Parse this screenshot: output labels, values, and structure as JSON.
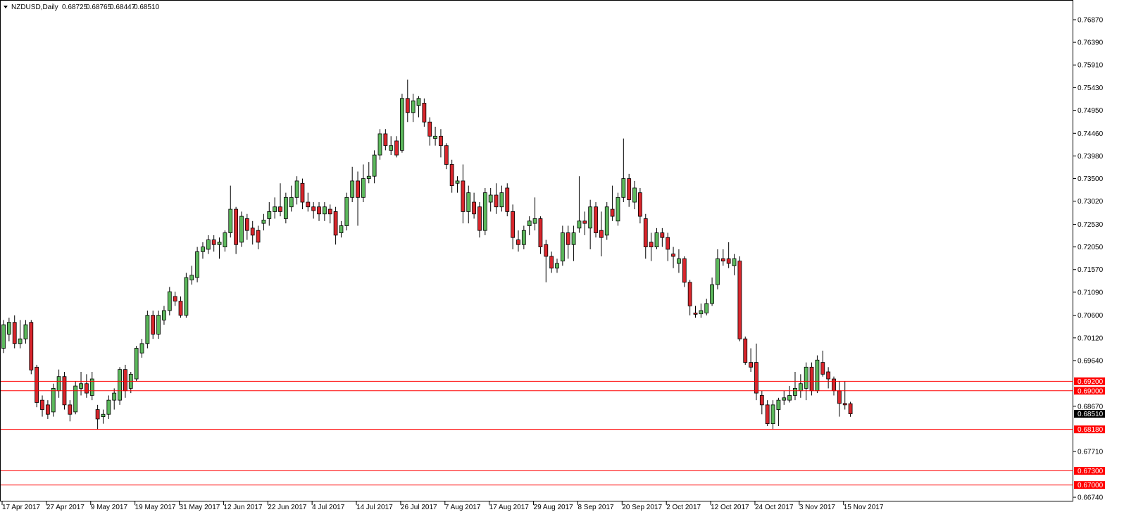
{
  "chart_data": {
    "type": "candlestick",
    "header": {
      "symbol": "NZDUSD,Daily",
      "quote": [
        "0.68725",
        "0.68765",
        "0.68447",
        "0.68510"
      ]
    },
    "up_color": "#5cb85c",
    "down_color": "#d9262c",
    "line_color": "#ff0000",
    "ylim": [
      0.66651,
      0.77288
    ],
    "yticks": [
      {
        "value": 0.7687,
        "label": "0.76870"
      },
      {
        "value": 0.7639,
        "label": "0.76390"
      },
      {
        "value": 0.7591,
        "label": "0.75910"
      },
      {
        "value": 0.7543,
        "label": "0.75430"
      },
      {
        "value": 0.7495,
        "label": "0.74950"
      },
      {
        "value": 0.7446,
        "label": "0.74460"
      },
      {
        "value": 0.7398,
        "label": "0.73980"
      },
      {
        "value": 0.735,
        "label": "0.73500"
      },
      {
        "value": 0.7302,
        "label": "0.73020"
      },
      {
        "value": 0.7253,
        "label": "0.72530"
      },
      {
        "value": 0.7205,
        "label": "0.72050"
      },
      {
        "value": 0.7157,
        "label": "0.71570"
      },
      {
        "value": 0.7109,
        "label": "0.71090"
      },
      {
        "value": 0.706,
        "label": "0.70600"
      },
      {
        "value": 0.7012,
        "label": "0.70120"
      },
      {
        "value": 0.6964,
        "label": "0.69640"
      },
      {
        "value": 0.6867,
        "label": "0.68670"
      },
      {
        "value": 0.6771,
        "label": "0.67710"
      },
      {
        "value": 0.6674,
        "label": "0.66740"
      }
    ],
    "hlines": [
      {
        "value": 0.692,
        "label": "0.69200"
      },
      {
        "value": 0.69,
        "label": "0.69000"
      },
      {
        "value": 0.6818,
        "label": "0.68180"
      },
      {
        "value": 0.673,
        "label": "0.67300"
      },
      {
        "value": 0.67,
        "label": "0.67000"
      }
    ],
    "current": {
      "value": 0.6851,
      "label": "0.68510"
    },
    "categories": [
      "17 Apr 2017",
      null,
      null,
      null,
      null,
      null,
      null,
      null,
      "27 Apr 2017",
      null,
      null,
      null,
      null,
      null,
      null,
      null,
      "9 May 2017",
      null,
      null,
      null,
      null,
      null,
      null,
      null,
      "19 May 2017",
      null,
      null,
      null,
      null,
      null,
      null,
      null,
      "31 May 2017",
      null,
      null,
      null,
      null,
      null,
      null,
      null,
      "12 Jun 2017",
      null,
      null,
      null,
      null,
      null,
      null,
      null,
      "22 Jun 2017",
      null,
      null,
      null,
      null,
      null,
      null,
      null,
      "4 Jul 2017",
      null,
      null,
      null,
      null,
      null,
      null,
      null,
      "14 Jul 2017",
      null,
      null,
      null,
      null,
      null,
      null,
      null,
      "26 Jul 2017",
      null,
      null,
      null,
      null,
      null,
      null,
      null,
      "7 Aug 2017",
      null,
      null,
      null,
      null,
      null,
      null,
      null,
      "17 Aug 2017",
      null,
      null,
      null,
      null,
      null,
      null,
      null,
      "29 Aug 2017",
      null,
      null,
      null,
      null,
      null,
      null,
      null,
      "8 Sep 2017",
      null,
      null,
      null,
      null,
      null,
      null,
      null,
      "20 Sep 2017",
      null,
      null,
      null,
      null,
      null,
      null,
      null,
      "2 Oct 2017",
      null,
      null,
      null,
      null,
      null,
      null,
      null,
      "12 Oct 2017",
      null,
      null,
      null,
      null,
      null,
      null,
      null,
      "24 Oct 2017",
      null,
      null,
      null,
      null,
      null,
      null,
      null,
      "3 Nov 2017",
      null,
      null,
      null,
      null,
      null,
      null,
      null,
      "15 Nov 2017",
      null
    ],
    "ohlc": [
      [
        0.699,
        0.705,
        0.698,
        0.704
      ],
      [
        0.702,
        0.7055,
        0.7005,
        0.7045
      ],
      [
        0.7045,
        0.706,
        0.699,
        0.7
      ],
      [
        0.7,
        0.705,
        0.699,
        0.701
      ],
      [
        0.701,
        0.705,
        0.7,
        0.704
      ],
      [
        0.7045,
        0.705,
        0.6935,
        0.6944
      ],
      [
        0.695,
        0.6955,
        0.6865,
        0.6875
      ],
      [
        0.688,
        0.689,
        0.6845,
        0.686
      ],
      [
        0.687,
        0.688,
        0.684,
        0.685
      ],
      [
        0.6855,
        0.6915,
        0.6845,
        0.6905
      ],
      [
        0.69,
        0.6945,
        0.6885,
        0.693
      ],
      [
        0.693,
        0.694,
        0.686,
        0.687
      ],
      [
        0.687,
        0.688,
        0.6835,
        0.685
      ],
      [
        0.6855,
        0.692,
        0.685,
        0.691
      ],
      [
        0.6905,
        0.694,
        0.689,
        0.6915
      ],
      [
        0.6915,
        0.6935,
        0.6885,
        0.6895
      ],
      [
        0.689,
        0.694,
        0.688,
        0.6925
      ],
      [
        0.686,
        0.687,
        0.6818,
        0.684
      ],
      [
        0.6845,
        0.686,
        0.683,
        0.685
      ],
      [
        0.685,
        0.689,
        0.684,
        0.688
      ],
      [
        0.688,
        0.6905,
        0.686,
        0.6895
      ],
      [
        0.688,
        0.695,
        0.687,
        0.6945
      ],
      [
        0.6945,
        0.6955,
        0.6885,
        0.69
      ],
      [
        0.6905,
        0.694,
        0.6895,
        0.6935
      ],
      [
        0.6925,
        0.6995,
        0.692,
        0.699
      ],
      [
        0.698,
        0.701,
        0.697,
        0.7
      ],
      [
        0.7,
        0.707,
        0.699,
        0.706
      ],
      [
        0.706,
        0.707,
        0.701,
        0.702
      ],
      [
        0.702,
        0.707,
        0.701,
        0.706
      ],
      [
        0.705,
        0.708,
        0.704,
        0.707
      ],
      [
        0.707,
        0.712,
        0.706,
        0.711
      ],
      [
        0.71,
        0.711,
        0.708,
        0.709
      ],
      [
        0.709,
        0.71,
        0.7055,
        0.706
      ],
      [
        0.706,
        0.715,
        0.7055,
        0.714
      ],
      [
        0.7135,
        0.7165,
        0.7125,
        0.7145
      ],
      [
        0.714,
        0.7205,
        0.713,
        0.7195
      ],
      [
        0.7195,
        0.7215,
        0.718,
        0.7205
      ],
      [
        0.72,
        0.723,
        0.719,
        0.722
      ],
      [
        0.722,
        0.723,
        0.7195,
        0.721
      ],
      [
        0.721,
        0.7225,
        0.718,
        0.7215
      ],
      [
        0.7205,
        0.724,
        0.7195,
        0.7235
      ],
      [
        0.7235,
        0.7335,
        0.7225,
        0.7285
      ],
      [
        0.7285,
        0.729,
        0.719,
        0.721
      ],
      [
        0.7215,
        0.728,
        0.7205,
        0.727
      ],
      [
        0.7265,
        0.7275,
        0.722,
        0.724
      ],
      [
        0.7245,
        0.726,
        0.721,
        0.723
      ],
      [
        0.724,
        0.725,
        0.72,
        0.7215
      ],
      [
        0.7255,
        0.7275,
        0.724,
        0.7262
      ],
      [
        0.7265,
        0.73,
        0.725,
        0.728
      ],
      [
        0.728,
        0.731,
        0.7265,
        0.729
      ],
      [
        0.729,
        0.734,
        0.727,
        0.728
      ],
      [
        0.7265,
        0.732,
        0.7255,
        0.731
      ],
      [
        0.729,
        0.7335,
        0.728,
        0.731
      ],
      [
        0.731,
        0.7355,
        0.7295,
        0.7345
      ],
      [
        0.734,
        0.735,
        0.7285,
        0.73
      ],
      [
        0.73,
        0.732,
        0.728,
        0.729
      ],
      [
        0.729,
        0.73,
        0.7265,
        0.7282
      ],
      [
        0.729,
        0.73,
        0.726,
        0.7275
      ],
      [
        0.7275,
        0.73,
        0.726,
        0.729
      ],
      [
        0.7285,
        0.7295,
        0.7255,
        0.7275
      ],
      [
        0.728,
        0.729,
        0.721,
        0.723
      ],
      [
        0.7235,
        0.726,
        0.7225,
        0.725
      ],
      [
        0.725,
        0.732,
        0.724,
        0.731
      ],
      [
        0.731,
        0.7375,
        0.73,
        0.7345
      ],
      [
        0.7345,
        0.7365,
        0.725,
        0.731
      ],
      [
        0.731,
        0.738,
        0.73,
        0.735
      ],
      [
        0.735,
        0.7385,
        0.734,
        0.7355
      ],
      [
        0.7355,
        0.741,
        0.734,
        0.74
      ],
      [
        0.74,
        0.7455,
        0.739,
        0.7445
      ],
      [
        0.7445,
        0.7455,
        0.741,
        0.742
      ],
      [
        0.741,
        0.744,
        0.74,
        0.742
      ],
      [
        0.743,
        0.744,
        0.7395,
        0.74
      ],
      [
        0.741,
        0.753,
        0.7405,
        0.752
      ],
      [
        0.752,
        0.756,
        0.747,
        0.749
      ],
      [
        0.749,
        0.753,
        0.747,
        0.7515
      ],
      [
        0.7505,
        0.7525,
        0.748,
        0.752
      ],
      [
        0.751,
        0.752,
        0.746,
        0.747
      ],
      [
        0.747,
        0.748,
        0.742,
        0.744
      ],
      [
        0.7435,
        0.746,
        0.742,
        0.744
      ],
      [
        0.744,
        0.7455,
        0.7395,
        0.742
      ],
      [
        0.742,
        0.7425,
        0.737,
        0.738
      ],
      [
        0.738,
        0.739,
        0.732,
        0.7335
      ],
      [
        0.734,
        0.7355,
        0.732,
        0.7345
      ],
      [
        0.7345,
        0.738,
        0.7255,
        0.728
      ],
      [
        0.728,
        0.7335,
        0.7255,
        0.732
      ],
      [
        0.73,
        0.732,
        0.7265,
        0.7275
      ],
      [
        0.729,
        0.73,
        0.7225,
        0.724
      ],
      [
        0.724,
        0.733,
        0.723,
        0.732
      ],
      [
        0.73,
        0.733,
        0.728,
        0.7315
      ],
      [
        0.7315,
        0.734,
        0.7275,
        0.729
      ],
      [
        0.729,
        0.7335,
        0.728,
        0.732
      ],
      [
        0.733,
        0.734,
        0.727,
        0.728
      ],
      [
        0.728,
        0.7295,
        0.72,
        0.7225
      ],
      [
        0.722,
        0.724,
        0.7195,
        0.721
      ],
      [
        0.721,
        0.725,
        0.72,
        0.724
      ],
      [
        0.725,
        0.727,
        0.723,
        0.726
      ],
      [
        0.7255,
        0.731,
        0.724,
        0.7265
      ],
      [
        0.7265,
        0.727,
        0.719,
        0.7205
      ],
      [
        0.721,
        0.722,
        0.713,
        0.7185
      ],
      [
        0.7185,
        0.7195,
        0.715,
        0.716
      ],
      [
        0.716,
        0.718,
        0.715,
        0.717
      ],
      [
        0.7175,
        0.725,
        0.7165,
        0.7235
      ],
      [
        0.7235,
        0.725,
        0.718,
        0.721
      ],
      [
        0.721,
        0.725,
        0.7175,
        0.7235
      ],
      [
        0.7245,
        0.7355,
        0.7235,
        0.726
      ],
      [
        0.726,
        0.728,
        0.723,
        0.7255
      ],
      [
        0.7245,
        0.7305,
        0.72,
        0.729
      ],
      [
        0.729,
        0.73,
        0.7225,
        0.7235
      ],
      [
        0.724,
        0.728,
        0.7185,
        0.7225
      ],
      [
        0.723,
        0.73,
        0.722,
        0.729
      ],
      [
        0.7285,
        0.7335,
        0.726,
        0.727
      ],
      [
        0.726,
        0.732,
        0.725,
        0.731
      ],
      [
        0.731,
        0.7435,
        0.73,
        0.735
      ],
      [
        0.735,
        0.736,
        0.729,
        0.7305
      ],
      [
        0.73,
        0.7345,
        0.7285,
        0.733
      ],
      [
        0.732,
        0.733,
        0.7255,
        0.727
      ],
      [
        0.7265,
        0.7275,
        0.718,
        0.7205
      ],
      [
        0.7215,
        0.7235,
        0.7175,
        0.7205
      ],
      [
        0.7205,
        0.7245,
        0.72,
        0.7235
      ],
      [
        0.7235,
        0.7245,
        0.7205,
        0.7225
      ],
      [
        0.7225,
        0.7235,
        0.7175,
        0.72
      ],
      [
        0.719,
        0.7205,
        0.716,
        0.7185
      ],
      [
        0.717,
        0.72,
        0.715,
        0.718
      ],
      [
        0.718,
        0.7185,
        0.712,
        0.713
      ],
      [
        0.713,
        0.7135,
        0.706,
        0.708
      ],
      [
        0.7065,
        0.708,
        0.7055,
        0.7062
      ],
      [
        0.7063,
        0.7085,
        0.7055,
        0.707
      ],
      [
        0.7065,
        0.7095,
        0.706,
        0.7085
      ],
      [
        0.7085,
        0.714,
        0.708,
        0.7125
      ],
      [
        0.7125,
        0.72,
        0.7115,
        0.718
      ],
      [
        0.718,
        0.72,
        0.7165,
        0.7175
      ],
      [
        0.718,
        0.7215,
        0.716,
        0.717
      ],
      [
        0.7165,
        0.719,
        0.7145,
        0.718
      ],
      [
        0.7175,
        0.7185,
        0.7005,
        0.701
      ],
      [
        0.701,
        0.7015,
        0.6955,
        0.696
      ],
      [
        0.696,
        0.699,
        0.694,
        0.695
      ],
      [
        0.696,
        0.7,
        0.688,
        0.6895
      ],
      [
        0.689,
        0.69,
        0.685,
        0.687
      ],
      [
        0.687,
        0.688,
        0.6825,
        0.683
      ],
      [
        0.683,
        0.688,
        0.6818,
        0.687
      ],
      [
        0.686,
        0.6885,
        0.6825,
        0.688
      ],
      [
        0.688,
        0.69,
        0.687,
        0.6885
      ],
      [
        0.688,
        0.691,
        0.6875,
        0.689
      ],
      [
        0.689,
        0.694,
        0.688,
        0.6905
      ],
      [
        0.69,
        0.6935,
        0.6885,
        0.6915
      ],
      [
        0.6905,
        0.696,
        0.688,
        0.695
      ],
      [
        0.695,
        0.696,
        0.689,
        0.69
      ],
      [
        0.69,
        0.6975,
        0.6895,
        0.6965
      ],
      [
        0.696,
        0.6985,
        0.693,
        0.6935
      ],
      [
        0.694,
        0.695,
        0.6905,
        0.6925
      ],
      [
        0.6925,
        0.693,
        0.689,
        0.69
      ],
      [
        0.69,
        0.692,
        0.6845,
        0.6873
      ],
      [
        0.6873,
        0.692,
        0.686,
        0.687
      ],
      [
        0.68725,
        0.68765,
        0.68447,
        0.6851
      ]
    ]
  }
}
